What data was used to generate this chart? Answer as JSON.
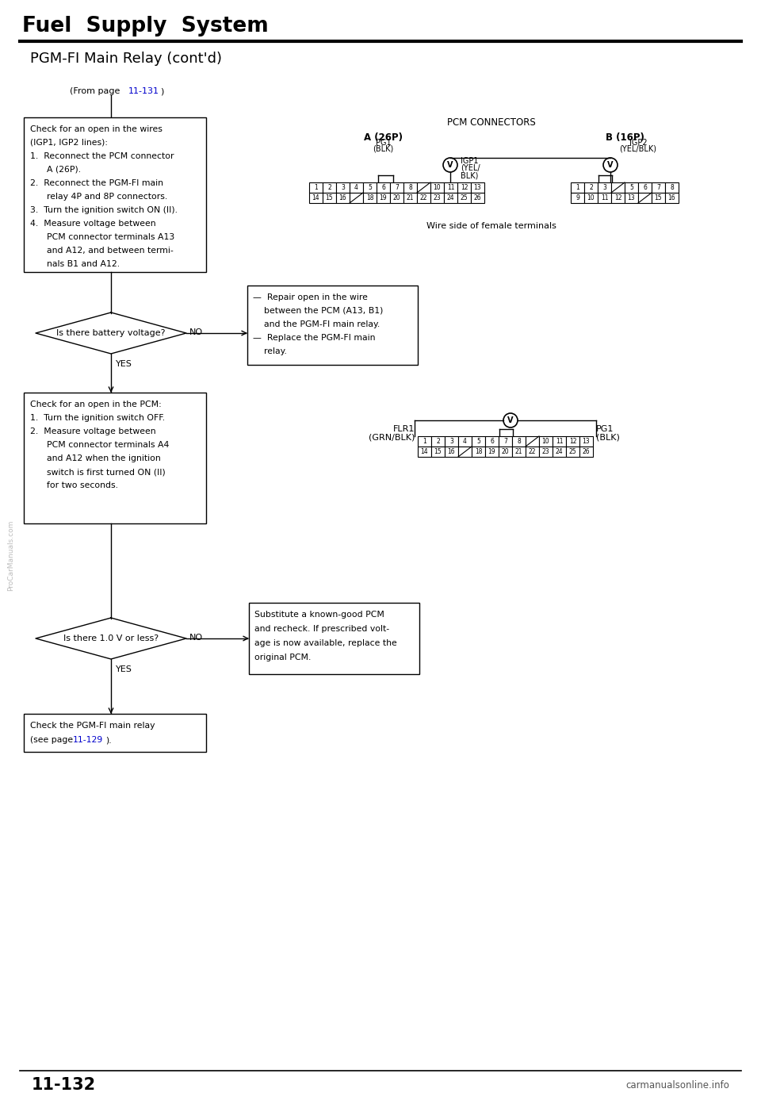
{
  "title": "Fuel Supply System",
  "subtitle": "PGM-FI Main Relay (cont'd)",
  "page_number": "11-132",
  "background_color": "#ffffff",
  "text_color": "#000000",
  "link_color": "#0000cc",
  "from_page_link": "11-131",
  "step3_link": "11-129",
  "watermark": "ProCarManuals.com",
  "site_footer": "carmanualsonline.info",
  "pcm_connectors_label": "PCM CONNECTORS",
  "connector_a_label": "A (26P)",
  "connector_b_label": "B (16P)",
  "wire_side_label": "Wire side of female terminals",
  "connector_a_row1": [
    "1",
    "2",
    "3",
    "4",
    "5",
    "6",
    "7",
    "8",
    "",
    "10",
    "11",
    "12",
    "13"
  ],
  "connector_a_row2": [
    "14",
    "15",
    "16",
    "",
    "18",
    "19",
    "20",
    "21",
    "22",
    "23",
    "24",
    "25",
    "26"
  ],
  "connector_b_row1": [
    "1",
    "2",
    "3",
    "",
    "5",
    "6",
    "7",
    "8"
  ],
  "connector_b_row2": [
    "9",
    "10",
    "11",
    "12",
    "13",
    "",
    "15",
    "16"
  ],
  "flr1_row1": [
    "1",
    "2",
    "3",
    "4",
    "5",
    "6",
    "7",
    "8",
    "",
    "10",
    "11",
    "12",
    "13"
  ],
  "flr1_row2": [
    "14",
    "15",
    "16",
    "",
    "18",
    "19",
    "20",
    "21",
    "22",
    "23",
    "24",
    "25",
    "26"
  ]
}
